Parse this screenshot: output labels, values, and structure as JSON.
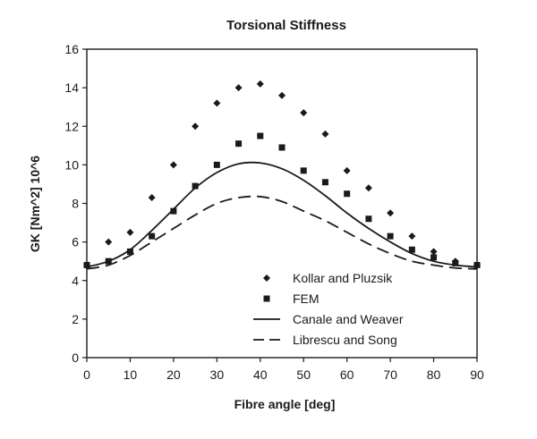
{
  "chart_data": {
    "type": "scatter",
    "title": "Torsional Stiffness",
    "xlabel": "Fibre angle [deg]",
    "ylabel": "GK [Nm^2] 10^6",
    "xlim": [
      0,
      90
    ],
    "ylim": [
      0,
      16
    ],
    "xticks": [
      0,
      10,
      20,
      30,
      40,
      50,
      60,
      70,
      80,
      90
    ],
    "yticks": [
      0,
      2,
      4,
      6,
      8,
      10,
      12,
      14,
      16
    ],
    "grid": false,
    "legend_position": "bottom-right",
    "series": [
      {
        "name": "Kollar and Pluzsik",
        "kind": "points",
        "marker": "diamond",
        "x": [
          0,
          5,
          10,
          15,
          20,
          25,
          30,
          35,
          40,
          45,
          50,
          55,
          60,
          65,
          70,
          75,
          80,
          85,
          90
        ],
        "y": [
          4.8,
          6.0,
          6.5,
          8.3,
          10.0,
          12.0,
          13.2,
          14.0,
          14.2,
          13.6,
          12.7,
          11.6,
          9.7,
          8.8,
          7.5,
          6.3,
          5.5,
          5.0,
          4.8
        ]
      },
      {
        "name": "FEM",
        "kind": "points",
        "marker": "square",
        "x": [
          0,
          5,
          10,
          15,
          20,
          25,
          30,
          35,
          40,
          45,
          50,
          55,
          60,
          65,
          70,
          75,
          80,
          85,
          90
        ],
        "y": [
          4.8,
          5.0,
          5.5,
          6.3,
          7.6,
          8.9,
          10.0,
          11.1,
          11.5,
          10.9,
          9.7,
          9.1,
          8.5,
          7.2,
          6.3,
          5.6,
          5.2,
          4.9,
          4.8
        ]
      },
      {
        "name": "Canale and Weaver",
        "kind": "line",
        "dash": "solid",
        "x": [
          0,
          5,
          10,
          15,
          20,
          25,
          30,
          35,
          40,
          45,
          50,
          55,
          60,
          65,
          70,
          75,
          80,
          85,
          90
        ],
        "y": [
          4.7,
          5.0,
          5.6,
          6.6,
          7.7,
          8.8,
          9.6,
          10.05,
          10.1,
          9.8,
          9.2,
          8.4,
          7.5,
          6.7,
          6.0,
          5.4,
          5.0,
          4.8,
          4.7
        ]
      },
      {
        "name": "Librescu and Song",
        "kind": "line",
        "dash": "dashed",
        "x": [
          0,
          5,
          10,
          15,
          20,
          25,
          30,
          35,
          40,
          45,
          50,
          55,
          60,
          65,
          70,
          75,
          80,
          85,
          90
        ],
        "y": [
          4.6,
          4.8,
          5.3,
          6.0,
          6.7,
          7.4,
          8.0,
          8.3,
          8.35,
          8.1,
          7.6,
          7.1,
          6.5,
          5.9,
          5.4,
          5.0,
          4.8,
          4.65,
          4.6
        ]
      }
    ]
  },
  "colors": {
    "ink": "#1a1a1a",
    "background": "#ffffff"
  }
}
